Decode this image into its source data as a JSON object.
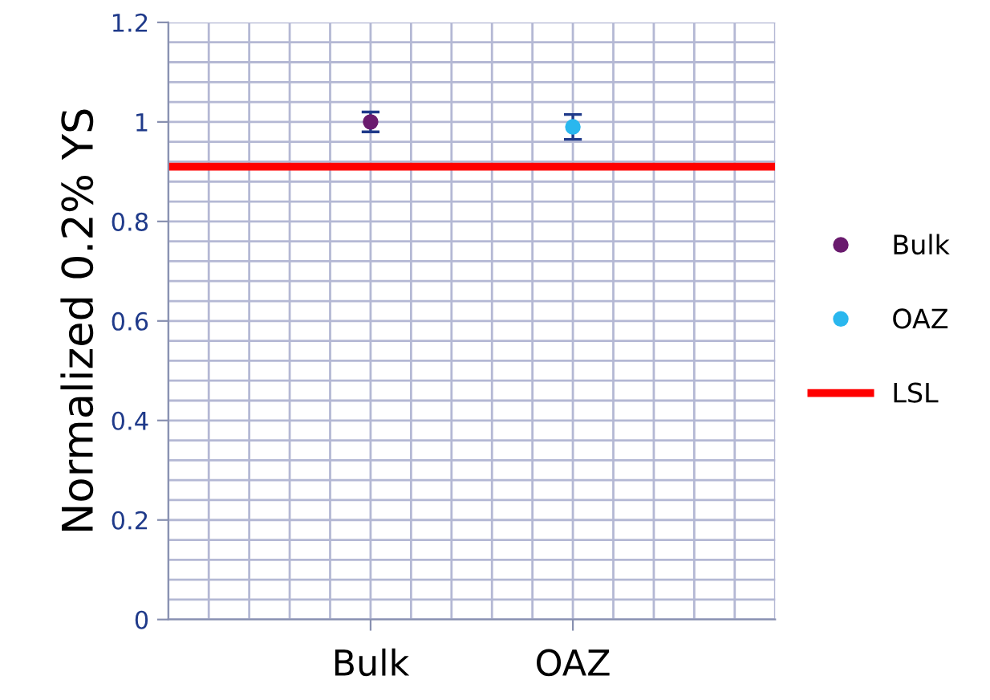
{
  "chart_data": {
    "type": "scatter",
    "ylabel": "Normalized 0.2% YS",
    "categories": [
      "Bulk",
      "OAZ"
    ],
    "series": [
      {
        "name": "Bulk",
        "color": "#6a1b6e",
        "values": [
          1.0,
          null
        ],
        "errors": [
          0.02,
          null
        ]
      },
      {
        "name": "OAZ",
        "color": "#2ab7ee",
        "values": [
          null,
          0.99
        ],
        "errors": [
          null,
          0.025
        ]
      }
    ],
    "ylim": [
      0,
      1.2
    ],
    "yticks": [
      0,
      0.2,
      0.4,
      0.6,
      0.8,
      1,
      1.2
    ],
    "ref_lines": [
      {
        "axis": "y",
        "value": 0.91,
        "label": "LSL",
        "color": "#ff0000",
        "line_style": "solid"
      }
    ],
    "grid": true,
    "legend": "right",
    "marker": "circle"
  }
}
